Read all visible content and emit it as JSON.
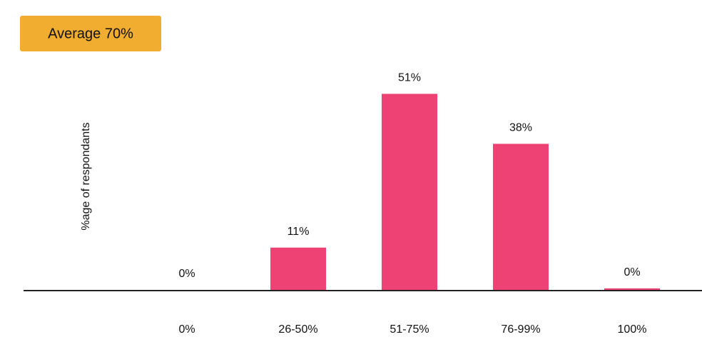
{
  "chart_data": {
    "type": "bar",
    "annotation": "Average 70%",
    "y_label": "%age of respondants",
    "categories": [
      "0%",
      "26-50%",
      "51-75%",
      "76-99%",
      "100%"
    ],
    "values": [
      0,
      11,
      51,
      38,
      0.4
    ],
    "value_labels": [
      "0%",
      "11%",
      "51%",
      "38%",
      "0%"
    ],
    "color": "#ee4275",
    "ylim": [
      0,
      60
    ]
  }
}
